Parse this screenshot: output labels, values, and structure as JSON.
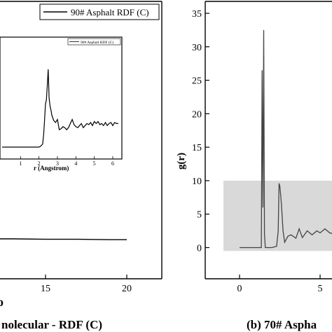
{
  "chart_data": [
    {
      "type": "line",
      "panel": "left",
      "title": "",
      "caption": "nolecular - RDF (C)",
      "panel_letter": "o",
      "xlabel": "",
      "ylabel": "",
      "xlim": [
        5,
        20
      ],
      "xticks": [
        15,
        20
      ],
      "tick_labels": [
        "15",
        "20"
      ],
      "legend_position": "top-right",
      "series": [
        {
          "name": "90# Asphalt RDF (C)",
          "x": [
            5,
            7,
            9,
            11,
            13,
            15,
            17,
            19,
            20
          ],
          "y": [
            1.02,
            1.01,
            1.0,
            1.0,
            1.0,
            0.99,
            0.99,
            0.98,
            0.98
          ]
        }
      ],
      "inset": {
        "type": "line",
        "xlabel": "r (Angstrom)",
        "xlim": [
          0,
          6.3
        ],
        "xticks": [
          1,
          2,
          3,
          4,
          5,
          6
        ],
        "tick_labels": [
          "1",
          "2",
          "3",
          "4",
          "5",
          "6"
        ],
        "legend_position": "top-right",
        "series": [
          {
            "name": "90# Asphalt RDF (C)",
            "x": [
              0,
              1,
              2.0,
              2.1,
              2.2,
              2.25,
              2.3,
              2.35,
              2.4,
              2.45,
              2.5,
              2.55,
              2.6,
              2.65,
              2.7,
              2.8,
              2.9,
              3.0,
              3.1,
              3.2,
              3.3,
              3.4,
              3.5,
              3.6,
              3.7,
              3.8,
              3.9,
              4.0,
              4.1,
              4.2,
              4.3,
              4.4,
              4.5,
              4.6,
              4.7,
              4.8,
              4.9,
              5.0,
              5.1,
              5.2,
              5.3,
              5.4,
              5.5,
              5.6,
              5.7,
              5.8,
              5.9,
              6.0,
              6.1,
              6.2,
              6.3
            ],
            "y": [
              0,
              0,
              0,
              0.05,
              0.15,
              0.6,
              1.3,
              2.1,
              2.3,
              3.0,
              3.8,
              2.4,
              2.0,
              1.8,
              1.55,
              1.3,
              1.2,
              1.35,
              0.85,
              0.9,
              1.0,
              0.95,
              0.85,
              0.95,
              1.15,
              1.35,
              1.1,
              1.0,
              0.95,
              1.05,
              1.15,
              0.95,
              1.05,
              1.15,
              1.1,
              1.2,
              1.05,
              1.25,
              1.15,
              1.25,
              1.1,
              1.15,
              1.05,
              1.2,
              1.05,
              1.15,
              1.2,
              1.05,
              1.2,
              1.15,
              1.15
            ]
          }
        ]
      }
    },
    {
      "type": "line",
      "panel": "right",
      "title": "",
      "caption": "(b) 70# Aspha",
      "xlabel": "",
      "ylabel": "g(r)",
      "ylim": [
        -0.8,
        37
      ],
      "yticks": [
        0,
        5,
        10,
        15,
        20,
        25,
        30,
        35
      ],
      "ytick_labels": [
        "0",
        "5",
        "10",
        "15",
        "20",
        "25",
        "30",
        "35"
      ],
      "xticks": [
        0,
        5
      ],
      "xtick_labels": [
        "0",
        "5"
      ],
      "highlight_box": {
        "x": [
          -1,
          6
        ],
        "y": [
          -0.5,
          10
        ]
      },
      "highlight_color": "#d9d9d9",
      "series": [
        {
          "name": "",
          "x": [
            0,
            1.2,
            1.35,
            1.4,
            1.45,
            1.5,
            1.55,
            1.6,
            1.65,
            1.7,
            1.75,
            1.8,
            2.0,
            2.3,
            2.4,
            2.45,
            2.5,
            2.55,
            2.6,
            2.7,
            2.8,
            3.0,
            3.2,
            3.5,
            3.7,
            3.9,
            4.2,
            4.5,
            4.8,
            5.0,
            5.3,
            5.6,
            6.0
          ],
          "y": [
            0,
            0,
            0,
            26.5,
            6.0,
            32.5,
            2.0,
            0,
            0,
            0,
            0,
            0,
            0,
            0.2,
            2.5,
            9.6,
            9.2,
            8.0,
            6.5,
            2.5,
            0.8,
            1.7,
            1.9,
            1.4,
            2.8,
            1.5,
            2.5,
            1.9,
            2.5,
            2.2,
            2.8,
            2.2,
            2.0
          ]
        }
      ]
    }
  ]
}
